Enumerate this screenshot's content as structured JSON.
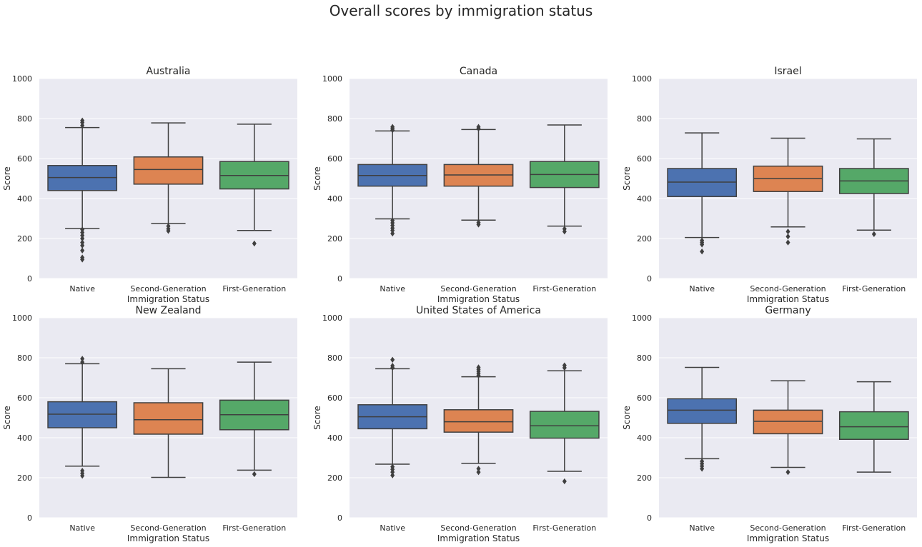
{
  "figure": {
    "suptitle": "Overall scores by immigration status",
    "background": "#eaeaf2",
    "grid_color": "#ffffff",
    "line_color": "#3f3f3f"
  },
  "chart_data": [
    {
      "type": "box",
      "title": "Australia",
      "xlabel": "Immigration Status",
      "ylabel": "Score",
      "ylim": [
        0,
        1000
      ],
      "yticks": [
        0,
        200,
        400,
        600,
        800,
        1000
      ],
      "categories": [
        "Native",
        "Second-Generation",
        "First-Generation"
      ],
      "colors": [
        "#4c72b0",
        "#dd8452",
        "#55a868"
      ],
      "grid": true,
      "boxes": [
        {
          "whislo": 250,
          "q1": 440,
          "med": 505,
          "q3": 565,
          "whishi": 755,
          "fliers": [
            95,
            105,
            140,
            165,
            180,
            200,
            215,
            230,
            245,
            765,
            780,
            790
          ]
        },
        {
          "whislo": 275,
          "q1": 472,
          "med": 545,
          "q3": 608,
          "whishi": 778,
          "fliers": [
            238,
            248,
            262
          ]
        },
        {
          "whislo": 240,
          "q1": 448,
          "med": 515,
          "q3": 585,
          "whishi": 772,
          "fliers": [
            175
          ]
        }
      ]
    },
    {
      "type": "box",
      "title": "Canada",
      "xlabel": "Immigration Status",
      "ylabel": "Score",
      "ylim": [
        0,
        1000
      ],
      "yticks": [
        0,
        200,
        400,
        600,
        800,
        1000
      ],
      "categories": [
        "Native",
        "Second-Generation",
        "First-Generation"
      ],
      "colors": [
        "#4c72b0",
        "#dd8452",
        "#55a868"
      ],
      "grid": true,
      "boxes": [
        {
          "whislo": 298,
          "q1": 462,
          "med": 515,
          "q3": 570,
          "whishi": 738,
          "fliers": [
            225,
            240,
            252,
            265,
            278,
            290,
            742,
            750,
            758
          ]
        },
        {
          "whislo": 292,
          "q1": 462,
          "med": 518,
          "q3": 570,
          "whishi": 745,
          "fliers": [
            270,
            280,
            750,
            758
          ]
        },
        {
          "whislo": 262,
          "q1": 455,
          "med": 520,
          "q3": 585,
          "whishi": 768,
          "fliers": [
            235,
            248
          ]
        }
      ]
    },
    {
      "type": "box",
      "title": "Israel",
      "xlabel": "Immigration Status",
      "ylabel": "Score",
      "ylim": [
        0,
        1000
      ],
      "yticks": [
        0,
        200,
        400,
        600,
        800,
        1000
      ],
      "categories": [
        "Native",
        "Second-Generation",
        "First-Generation"
      ],
      "colors": [
        "#4c72b0",
        "#dd8452",
        "#55a868"
      ],
      "grid": true,
      "boxes": [
        {
          "whislo": 205,
          "q1": 410,
          "med": 482,
          "q3": 550,
          "whishi": 728,
          "fliers": [
            135,
            170,
            180,
            190
          ]
        },
        {
          "whislo": 258,
          "q1": 435,
          "med": 500,
          "q3": 562,
          "whishi": 702,
          "fliers": [
            180,
            210,
            235
          ]
        },
        {
          "whislo": 242,
          "q1": 425,
          "med": 488,
          "q3": 550,
          "whishi": 698,
          "fliers": [
            222
          ]
        }
      ]
    },
    {
      "type": "box",
      "title": "New Zealand",
      "xlabel": "Immigration Status",
      "ylabel": "Score",
      "ylim": [
        0,
        1000
      ],
      "yticks": [
        0,
        200,
        400,
        600,
        800,
        1000
      ],
      "categories": [
        "Native",
        "Second-Generation",
        "First-Generation"
      ],
      "colors": [
        "#4c72b0",
        "#dd8452",
        "#55a868"
      ],
      "grid": true,
      "boxes": [
        {
          "whislo": 258,
          "q1": 450,
          "med": 518,
          "q3": 580,
          "whishi": 770,
          "fliers": [
            210,
            222,
            235,
            778,
            795
          ]
        },
        {
          "whislo": 202,
          "q1": 418,
          "med": 490,
          "q3": 575,
          "whishi": 745,
          "fliers": []
        },
        {
          "whislo": 238,
          "q1": 440,
          "med": 515,
          "q3": 588,
          "whishi": 778,
          "fliers": [
            218
          ]
        }
      ]
    },
    {
      "type": "box",
      "title": "United States of America",
      "xlabel": "Immigration Status",
      "ylabel": "Score",
      "ylim": [
        0,
        1000
      ],
      "yticks": [
        0,
        200,
        400,
        600,
        800,
        1000
      ],
      "categories": [
        "Native",
        "Second-Generation",
        "First-Generation"
      ],
      "colors": [
        "#4c72b0",
        "#dd8452",
        "#55a868"
      ],
      "grid": true,
      "boxes": [
        {
          "whislo": 268,
          "q1": 445,
          "med": 505,
          "q3": 565,
          "whishi": 745,
          "fliers": [
            212,
            228,
            242,
            255,
            750,
            760,
            790
          ]
        },
        {
          "whislo": 272,
          "q1": 428,
          "med": 480,
          "q3": 540,
          "whishi": 705,
          "fliers": [
            228,
            245,
            712,
            722,
            732,
            742,
            752
          ]
        },
        {
          "whislo": 232,
          "q1": 398,
          "med": 460,
          "q3": 532,
          "whishi": 735,
          "fliers": [
            182,
            750,
            762
          ]
        }
      ]
    },
    {
      "type": "box",
      "title": "Germany",
      "xlabel": "Immigration Status",
      "ylabel": "Score",
      "ylim": [
        0,
        1000
      ],
      "yticks": [
        0,
        200,
        400,
        600,
        800,
        1000
      ],
      "categories": [
        "Native",
        "Second-Generation",
        "First-Generation"
      ],
      "colors": [
        "#4c72b0",
        "#dd8452",
        "#55a868"
      ],
      "grid": true,
      "boxes": [
        {
          "whislo": 295,
          "q1": 472,
          "med": 538,
          "q3": 595,
          "whishi": 752,
          "fliers": [
            245,
            258,
            270,
            282
          ]
        },
        {
          "whislo": 252,
          "q1": 420,
          "med": 482,
          "q3": 538,
          "whishi": 685,
          "fliers": [
            228
          ]
        },
        {
          "whislo": 228,
          "q1": 392,
          "med": 455,
          "q3": 530,
          "whishi": 680,
          "fliers": []
        }
      ]
    }
  ]
}
